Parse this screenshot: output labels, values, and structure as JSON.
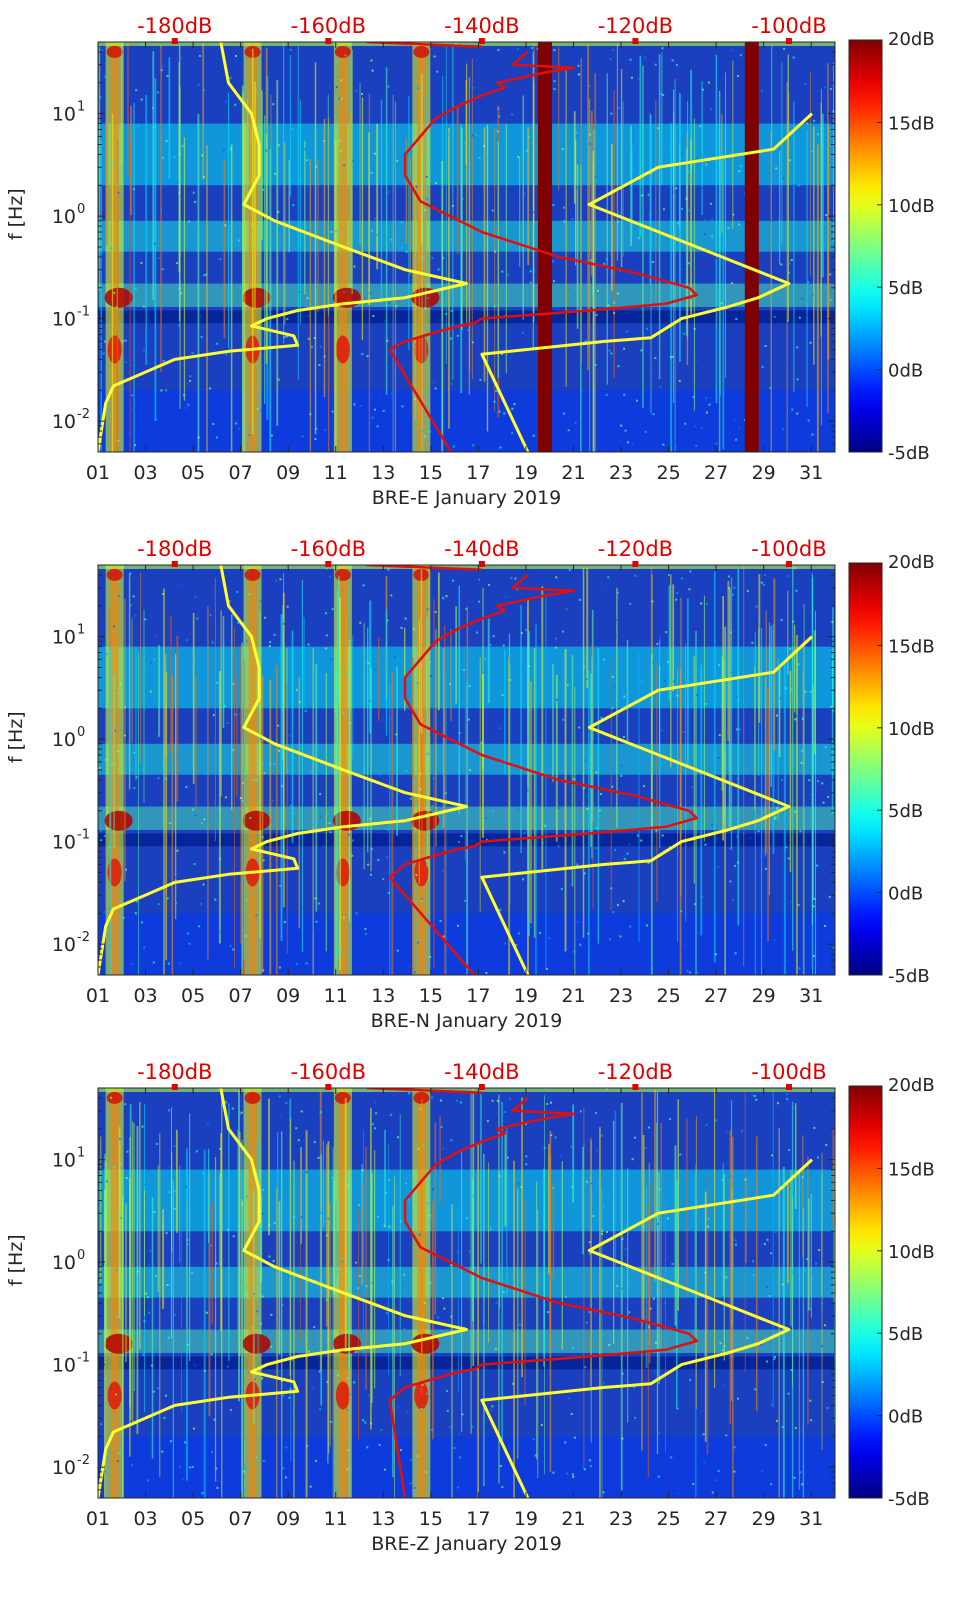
{
  "chart_data": [
    {
      "type": "heatmap",
      "xlabel": "BRE-E January 2019",
      "ylabel": "f [Hz]",
      "x_ticks": [
        "01",
        "03",
        "05",
        "07",
        "09",
        "11",
        "13",
        "15",
        "17",
        "19",
        "21",
        "23",
        "25",
        "27",
        "29",
        "31"
      ],
      "x_range": [
        1,
        32
      ],
      "y_scale": "log",
      "y_range": [
        0.005,
        50
      ],
      "y_ticks": [
        {
          "base": "10",
          "exp": "1",
          "value": 10
        },
        {
          "base": "10",
          "exp": "0",
          "value": 1
        },
        {
          "base": "10",
          "exp": "-1",
          "value": 0.1
        },
        {
          "base": "10",
          "exp": "-2",
          "value": 0.01
        }
      ],
      "top_axis_ticks": [
        "-180dB",
        "-160dB",
        "-140dB",
        "-120dB",
        "-100dB"
      ],
      "top_axis_range": [
        -190,
        -94
      ],
      "colorbar_ticks": [
        "20dB",
        "15dB",
        "10dB",
        "5dB",
        "0dB",
        "-5dB"
      ],
      "colorbar_range": [
        -5,
        20
      ],
      "colormap": "jet",
      "dark_red_bands_days": [
        19.8,
        28.5
      ],
      "yellow_curve": [
        [
          -190,
          0.005
        ],
        [
          -189,
          0.015
        ],
        [
          -188,
          0.022
        ],
        [
          -180,
          0.04
        ],
        [
          -173,
          0.048
        ],
        [
          -164,
          0.055
        ],
        [
          -164.5,
          0.068
        ],
        [
          -170,
          0.085
        ],
        [
          -168,
          0.1
        ],
        [
          -164,
          0.12
        ],
        [
          -158,
          0.14
        ],
        [
          -150,
          0.16
        ],
        [
          -142,
          0.22
        ],
        [
          -150,
          0.3
        ],
        [
          -158,
          0.5
        ],
        [
          -167,
          0.9
        ],
        [
          -171,
          1.3
        ],
        [
          -169,
          2.5
        ],
        [
          -169,
          5
        ],
        [
          -170,
          10
        ],
        [
          -173,
          20
        ],
        [
          -174,
          50
        ]
      ],
      "yellow_curve_2": [
        [
          -134,
          0.005
        ],
        [
          -140,
          0.045
        ],
        [
          -124,
          0.06
        ],
        [
          -118,
          0.065
        ],
        [
          -114,
          0.1
        ],
        [
          -108,
          0.13
        ],
        [
          -104,
          0.16
        ],
        [
          -100,
          0.22
        ],
        [
          -112,
          0.5
        ],
        [
          -126,
          1.3
        ],
        [
          -117,
          3
        ],
        [
          -102,
          4.5
        ],
        [
          -97,
          10
        ]
      ],
      "red_curve": [
        [
          -144,
          0.005
        ],
        [
          -152,
          0.05
        ],
        [
          -150,
          0.06
        ],
        [
          -147,
          0.07
        ],
        [
          -143,
          0.085
        ],
        [
          -141,
          0.09
        ],
        [
          -140,
          0.1
        ],
        [
          -126,
          0.12
        ],
        [
          -116,
          0.14
        ],
        [
          -112,
          0.17
        ],
        [
          -113,
          0.2
        ],
        [
          -120,
          0.28
        ],
        [
          -130,
          0.4
        ],
        [
          -140,
          0.7
        ],
        [
          -148,
          1.4
        ],
        [
          -150,
          2.5
        ],
        [
          -150,
          4
        ],
        [
          -148,
          6
        ],
        [
          -146,
          9
        ],
        [
          -143,
          12
        ],
        [
          -140,
          15
        ],
        [
          -137,
          18
        ],
        [
          -138,
          20
        ],
        [
          -132,
          25
        ],
        [
          -128,
          28
        ],
        [
          -136,
          30
        ],
        [
          -134,
          40
        ]
      ],
      "red_top_shape": [
        [
          -155,
          50
        ],
        [
          -140,
          45
        ]
      ]
    },
    {
      "type": "heatmap",
      "xlabel": "BRE-N January 2019",
      "ylabel": "f [Hz]",
      "x_ticks": [
        "01",
        "03",
        "05",
        "07",
        "09",
        "11",
        "13",
        "15",
        "17",
        "19",
        "21",
        "23",
        "25",
        "27",
        "29",
        "31"
      ],
      "x_range": [
        1,
        32
      ],
      "y_scale": "log",
      "y_range": [
        0.005,
        50
      ],
      "y_ticks": [
        {
          "base": "10",
          "exp": "1",
          "value": 10
        },
        {
          "base": "10",
          "exp": "0",
          "value": 1
        },
        {
          "base": "10",
          "exp": "-1",
          "value": 0.1
        },
        {
          "base": "10",
          "exp": "-2",
          "value": 0.01
        }
      ],
      "top_axis_ticks": [
        "-180dB",
        "-160dB",
        "-140dB",
        "-120dB",
        "-100dB"
      ],
      "top_axis_range": [
        -190,
        -94
      ],
      "colorbar_ticks": [
        "20dB",
        "15dB",
        "10dB",
        "5dB",
        "0dB",
        "-5dB"
      ],
      "colorbar_range": [
        -5,
        20
      ],
      "colormap": "jet",
      "dark_red_bands_days": [],
      "yellow_curve": [
        [
          -190,
          0.005
        ],
        [
          -189,
          0.015
        ],
        [
          -188,
          0.022
        ],
        [
          -180,
          0.04
        ],
        [
          -173,
          0.048
        ],
        [
          -164,
          0.055
        ],
        [
          -164.5,
          0.068
        ],
        [
          -170,
          0.085
        ],
        [
          -168,
          0.1
        ],
        [
          -164,
          0.12
        ],
        [
          -158,
          0.14
        ],
        [
          -150,
          0.16
        ],
        [
          -142,
          0.22
        ],
        [
          -150,
          0.3
        ],
        [
          -158,
          0.5
        ],
        [
          -167,
          0.9
        ],
        [
          -171,
          1.3
        ],
        [
          -169,
          2.5
        ],
        [
          -169,
          5
        ],
        [
          -170,
          10
        ],
        [
          -173,
          20
        ],
        [
          -174,
          50
        ]
      ],
      "yellow_curve_2": [
        [
          -134,
          0.005
        ],
        [
          -140,
          0.045
        ],
        [
          -124,
          0.06
        ],
        [
          -118,
          0.065
        ],
        [
          -114,
          0.1
        ],
        [
          -108,
          0.13
        ],
        [
          -104,
          0.16
        ],
        [
          -100,
          0.22
        ],
        [
          -112,
          0.5
        ],
        [
          -126,
          1.3
        ],
        [
          -117,
          3
        ],
        [
          -102,
          4.5
        ],
        [
          -97,
          10
        ]
      ],
      "red_curve": [
        [
          -141,
          0.005
        ],
        [
          -152,
          0.045
        ],
        [
          -150,
          0.06
        ],
        [
          -147,
          0.07
        ],
        [
          -143,
          0.085
        ],
        [
          -141,
          0.09
        ],
        [
          -140,
          0.1
        ],
        [
          -126,
          0.12
        ],
        [
          -116,
          0.14
        ],
        [
          -112,
          0.17
        ],
        [
          -113,
          0.2
        ],
        [
          -120,
          0.28
        ],
        [
          -130,
          0.4
        ],
        [
          -140,
          0.7
        ],
        [
          -148,
          1.4
        ],
        [
          -150,
          2.5
        ],
        [
          -150,
          4
        ],
        [
          -148,
          6
        ],
        [
          -146,
          9
        ],
        [
          -143,
          12
        ],
        [
          -140,
          15
        ],
        [
          -137,
          18
        ],
        [
          -138,
          20
        ],
        [
          -132,
          25
        ],
        [
          -128,
          28
        ],
        [
          -136,
          30
        ],
        [
          -134,
          40
        ]
      ],
      "red_top_shape": [
        [
          -155,
          50
        ],
        [
          -140,
          45
        ]
      ]
    },
    {
      "type": "heatmap",
      "xlabel": "BRE-Z January 2019",
      "ylabel": "f [Hz]",
      "x_ticks": [
        "01",
        "03",
        "05",
        "07",
        "09",
        "11",
        "13",
        "15",
        "17",
        "19",
        "21",
        "23",
        "25",
        "27",
        "29",
        "31"
      ],
      "x_range": [
        1,
        32
      ],
      "y_scale": "log",
      "y_range": [
        0.005,
        50
      ],
      "y_ticks": [
        {
          "base": "10",
          "exp": "1",
          "value": 10
        },
        {
          "base": "10",
          "exp": "0",
          "value": 1
        },
        {
          "base": "10",
          "exp": "-1",
          "value": 0.1
        },
        {
          "base": "10",
          "exp": "-2",
          "value": 0.01
        }
      ],
      "top_axis_ticks": [
        "-180dB",
        "-160dB",
        "-140dB",
        "-120dB",
        "-100dB"
      ],
      "top_axis_range": [
        -190,
        -94
      ],
      "colorbar_ticks": [
        "20dB",
        "15dB",
        "10dB",
        "5dB",
        "0dB",
        "-5dB"
      ],
      "colorbar_range": [
        -5,
        20
      ],
      "colormap": "jet",
      "dark_red_bands_days": [],
      "yellow_curve": [
        [
          -190,
          0.005
        ],
        [
          -189,
          0.015
        ],
        [
          -188,
          0.022
        ],
        [
          -180,
          0.04
        ],
        [
          -173,
          0.048
        ],
        [
          -164,
          0.055
        ],
        [
          -164.5,
          0.068
        ],
        [
          -170,
          0.085
        ],
        [
          -168,
          0.1
        ],
        [
          -164,
          0.12
        ],
        [
          -158,
          0.14
        ],
        [
          -150,
          0.16
        ],
        [
          -142,
          0.22
        ],
        [
          -150,
          0.3
        ],
        [
          -158,
          0.5
        ],
        [
          -167,
          0.9
        ],
        [
          -171,
          1.3
        ],
        [
          -169,
          2.5
        ],
        [
          -169,
          5
        ],
        [
          -170,
          10
        ],
        [
          -173,
          20
        ],
        [
          -174,
          50
        ]
      ],
      "yellow_curve_2": [
        [
          -134,
          0.005
        ],
        [
          -140,
          0.045
        ],
        [
          -124,
          0.06
        ],
        [
          -118,
          0.065
        ],
        [
          -114,
          0.1
        ],
        [
          -108,
          0.13
        ],
        [
          -104,
          0.16
        ],
        [
          -100,
          0.22
        ],
        [
          -112,
          0.5
        ],
        [
          -126,
          1.3
        ],
        [
          -117,
          3
        ],
        [
          -102,
          4.5
        ],
        [
          -97,
          10
        ]
      ],
      "red_curve": [
        [
          -150,
          0.005
        ],
        [
          -152,
          0.045
        ],
        [
          -150,
          0.06
        ],
        [
          -147,
          0.07
        ],
        [
          -143,
          0.085
        ],
        [
          -141,
          0.09
        ],
        [
          -140,
          0.1
        ],
        [
          -126,
          0.12
        ],
        [
          -116,
          0.14
        ],
        [
          -112,
          0.17
        ],
        [
          -113,
          0.2
        ],
        [
          -120,
          0.28
        ],
        [
          -130,
          0.4
        ],
        [
          -140,
          0.7
        ],
        [
          -148,
          1.4
        ],
        [
          -150,
          2.5
        ],
        [
          -150,
          4
        ],
        [
          -148,
          6
        ],
        [
          -146,
          9
        ],
        [
          -143,
          12
        ],
        [
          -140,
          15
        ],
        [
          -137,
          18
        ],
        [
          -138,
          20
        ],
        [
          -132,
          25
        ],
        [
          -128,
          28
        ],
        [
          -136,
          30
        ],
        [
          -134,
          40
        ]
      ],
      "red_top_shape": [
        [
          -155,
          50
        ],
        [
          -140,
          45
        ]
      ]
    }
  ],
  "colors": {
    "top_axis_label": "#e00000",
    "yellow_curve": "#ffff33",
    "red_curve": "#e01010",
    "band": "#7f0000",
    "background_heat": "#1a40c0"
  }
}
